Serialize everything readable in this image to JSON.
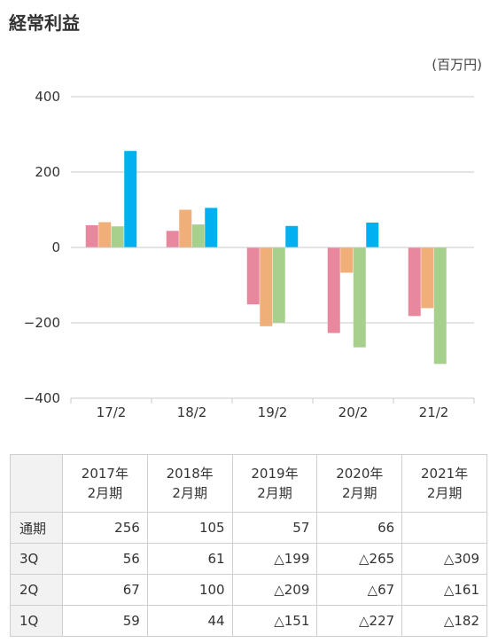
{
  "title": "経常利益",
  "unit": "(百万円)",
  "chart_data": {
    "type": "bar",
    "categories": [
      "17/2",
      "18/2",
      "19/2",
      "20/2",
      "21/2"
    ],
    "series": [
      {
        "name": "1Q",
        "color": "#e8889f",
        "values": [
          59,
          44,
          -151,
          -227,
          -182
        ]
      },
      {
        "name": "2Q",
        "color": "#f0ae78",
        "values": [
          67,
          100,
          -209,
          -67,
          -161
        ]
      },
      {
        "name": "3Q",
        "color": "#a8d08d",
        "values": [
          56,
          61,
          -199,
          -265,
          -309
        ]
      },
      {
        "name": "通期",
        "color": "#00b0f0",
        "values": [
          256,
          105,
          57,
          66,
          null
        ]
      }
    ],
    "ylim": [
      -400,
      400
    ],
    "yticks": [
      400,
      200,
      0,
      -200,
      -400
    ],
    "ytick_labels": [
      "400",
      "200",
      "0",
      "−200",
      "−400"
    ],
    "grid": true
  },
  "table": {
    "columns": [
      {
        "line1": "2017年",
        "line2": "2月期"
      },
      {
        "line1": "2018年",
        "line2": "2月期"
      },
      {
        "line1": "2019年",
        "line2": "2月期"
      },
      {
        "line1": "2020年",
        "line2": "2月期"
      },
      {
        "line1": "2021年",
        "line2": "2月期"
      }
    ],
    "rows": [
      {
        "label": "通期",
        "cells": [
          "256",
          "105",
          "57",
          "66",
          ""
        ]
      },
      {
        "label": "3Q",
        "cells": [
          "56",
          "61",
          "△199",
          "△265",
          "△309"
        ]
      },
      {
        "label": "2Q",
        "cells": [
          "67",
          "100",
          "△209",
          "△67",
          "△161"
        ]
      },
      {
        "label": "1Q",
        "cells": [
          "59",
          "44",
          "△151",
          "△227",
          "△182"
        ]
      }
    ]
  },
  "colors": {
    "grid": "#c8c8c8",
    "header_bg": "#f2f2f2",
    "border": "#cfcfcf"
  }
}
